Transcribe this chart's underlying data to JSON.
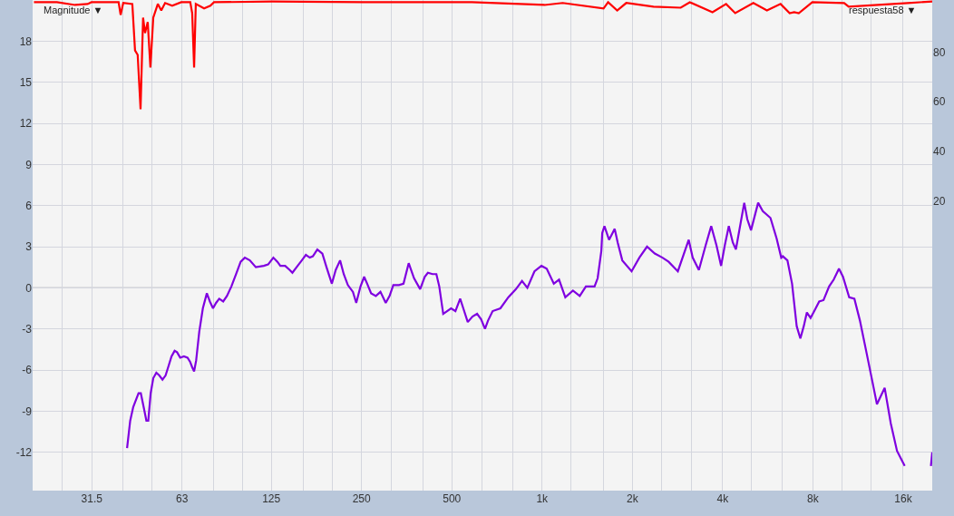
{
  "chart_data": {
    "type": "line",
    "annotations": [
      "Magnitude ▼",
      "respuesta58 ▼"
    ],
    "xlim": [
      20,
      20000
    ],
    "ylim": [
      -14.8,
      21
    ],
    "y2lim": [
      -96.7,
      101
    ],
    "log": "x",
    "grid": true,
    "legend": false,
    "marker": "none",
    "line_style": "solid",
    "xticks": [
      {
        "value": 25,
        "label": null
      },
      {
        "value": 31.5,
        "label": "31.5"
      },
      {
        "value": 40,
        "label": null
      },
      {
        "value": 50,
        "label": null
      },
      {
        "value": 63,
        "label": "63"
      },
      {
        "value": 80,
        "label": null
      },
      {
        "value": 100,
        "label": null
      },
      125,
      {
        "value": 160,
        "label": null
      },
      {
        "value": 200,
        "label": null
      },
      250,
      {
        "value": 315,
        "label": null
      },
      {
        "value": 400,
        "label": null
      },
      500,
      {
        "value": 630,
        "label": null
      },
      {
        "value": 800,
        "label": null
      },
      {
        "value": 1000,
        "label": "1k"
      },
      {
        "value": 1250,
        "label": null
      },
      {
        "value": 1600,
        "label": null
      },
      {
        "value": 2000,
        "label": "2k"
      },
      {
        "value": 2500,
        "label": null
      },
      {
        "value": 3150,
        "label": null
      },
      {
        "value": 4000,
        "label": "4k"
      },
      {
        "value": 5000,
        "label": null
      },
      {
        "value": 6300,
        "label": null
      },
      {
        "value": 8000,
        "label": "8k"
      },
      {
        "value": 10000,
        "label": null
      },
      {
        "value": 12500,
        "label": null
      },
      {
        "value": 16000,
        "label": "16k"
      }
    ],
    "yticks": [
      -12,
      -9,
      -6,
      -3,
      0,
      3,
      6,
      9,
      12,
      15,
      18
    ],
    "y2ticks": [
      20,
      40,
      60,
      80
    ],
    "ref_lines": [
      {
        "axis": "y",
        "value": 0,
        "color": "#a0a0a8"
      }
    ],
    "series": [
      {
        "color": "#ff0000",
        "axis": "y2",
        "x": [
          20.2,
          24.1,
          27.7,
          30.5,
          31.4,
          38.7,
          39.3,
          40.1,
          43.0,
          43.9,
          44.8,
          45.8,
          46.7,
          47.4,
          48.4,
          49.4,
          50.5,
          52.3,
          53.7,
          55.3,
          58.4,
          62.6,
          67.1,
          68.1,
          69.1,
          70.0,
          74.6,
          78.3,
          80.5,
          126,
          253,
          583,
          1019,
          1171,
          1603,
          1660,
          1780,
          1908,
          2352,
          2899,
          3108,
          3700,
          4108,
          4405,
          5063,
          5621,
          6242,
          6692,
          6930,
          7177,
          7964,
          10170,
          10530,
          16560,
          20000
        ],
        "values": [
          100.1,
          100.1,
          99.0,
          99.4,
          100.1,
          100.1,
          95.0,
          99.8,
          99.4,
          80.7,
          78.9,
          57.0,
          93.9,
          87.7,
          92.1,
          73.8,
          93.9,
          99.4,
          96.8,
          99.8,
          98.7,
          100.1,
          100.1,
          95.7,
          73.8,
          99.4,
          97.6,
          98.7,
          100.1,
          100.4,
          100.1,
          100.1,
          99.0,
          99.8,
          97.6,
          100.1,
          96.8,
          99.8,
          98.3,
          97.9,
          100.1,
          96.1,
          99.4,
          95.7,
          99.8,
          96.8,
          99.4,
          95.7,
          96.1,
          95.7,
          100.1,
          99.8,
          98.3,
          99.8,
          100.4
        ]
      },
      {
        "color": "#7f00e0",
        "x": [
          41.3,
          42.3,
          43.3,
          45.1,
          45.9,
          47.0,
          47.9,
          48.6,
          49.5,
          50.5,
          51.7,
          52.9,
          54.2,
          55.5,
          56.8,
          58.1,
          59.5,
          60.6,
          62.1,
          63.9,
          65.7,
          67.0,
          68.1,
          69.1,
          70.2,
          71.9,
          73.9,
          76.2,
          78.0,
          79.9,
          81.8,
          83.8,
          86.4,
          88.9,
          92.0,
          95.4,
          98.8,
          102,
          106,
          111,
          118,
          122,
          127,
          131,
          134,
          139,
          144,
          147,
          153,
          158,
          163,
          168,
          172,
          178,
          185,
          191,
          199,
          205,
          212,
          218,
          225,
          234,
          240,
          248,
          255,
          261,
          269,
          279,
          289,
          301,
          310,
          319,
          333,
          345,
          359,
          374,
          392,
          406,
          416,
          431,
          444,
          454,
          468,
          497,
          514,
          533,
          546,
          565,
          586,
          607,
          626,
          645,
          660,
          684,
          726,
          771,
          818,
          857,
          893,
          943,
          995,
          1036,
          1094,
          1139,
          1195,
          1267,
          1335,
          1400,
          1496,
          1532,
          1576,
          1587,
          1614,
          1672,
          1746,
          1787,
          1851,
          1988,
          2110,
          2238,
          2375,
          2520,
          2642,
          2836,
          3083,
          3178,
          3333,
          3511,
          3664,
          3815,
          3953,
          4067,
          4194,
          4325,
          4429,
          4722,
          4834,
          4974,
          5253,
          5443,
          5774,
          6055,
          6273,
          6348,
          6578,
          6817,
          7063,
          7265,
          7458,
          7638,
          7859,
          8084,
          8396,
          8680,
          9062,
          9387,
          9772,
          10080,
          10570,
          11000,
          11480,
          12040,
          12620,
          13080,
          13880,
          14550,
          15260,
          16190,
          18000,
          19800,
          20000
        ],
        "values": [
          -11.7,
          -9.7,
          -8.7,
          -7.7,
          -7.7,
          -8.8,
          -9.7,
          -9.7,
          -7.7,
          -6.6,
          -6.2,
          -6.4,
          -6.7,
          -6.4,
          -5.7,
          -5.0,
          -4.6,
          -4.7,
          -5.1,
          -5.0,
          -5.1,
          -5.4,
          -5.8,
          -6.1,
          -5.3,
          -3.2,
          -1.5,
          -0.4,
          -1.0,
          -1.5,
          -1.1,
          -0.8,
          -1.0,
          -0.6,
          0.1,
          1.0,
          1.9,
          2.2,
          2.0,
          1.5,
          1.6,
          1.7,
          2.2,
          1.9,
          1.6,
          1.6,
          1.3,
          1.1,
          1.6,
          2.0,
          2.4,
          2.2,
          2.3,
          2.8,
          2.5,
          1.5,
          0.3,
          1.3,
          2.0,
          1.0,
          0.2,
          -0.3,
          -1.1,
          0.1,
          0.8,
          0.3,
          -0.4,
          -0.6,
          -0.3,
          -1.1,
          -0.6,
          0.2,
          0.2,
          0.3,
          1.8,
          0.7,
          -0.1,
          0.8,
          1.1,
          1.0,
          1.0,
          0.1,
          -1.9,
          -1.5,
          -1.7,
          -0.8,
          -1.5,
          -2.5,
          -2.1,
          -1.9,
          -2.3,
          -3.0,
          -2.4,
          -1.7,
          -1.5,
          -0.7,
          -0.1,
          0.5,
          0.0,
          1.2,
          1.6,
          1.4,
          0.3,
          0.6,
          -0.7,
          -0.2,
          -0.6,
          0.1,
          0.1,
          0.7,
          2.7,
          4.0,
          4.5,
          3.5,
          4.3,
          3.3,
          2.0,
          1.2,
          2.2,
          3.0,
          2.5,
          2.2,
          1.9,
          1.2,
          3.5,
          2.2,
          1.3,
          3.1,
          4.5,
          3.1,
          1.6,
          3.1,
          4.5,
          3.3,
          2.8,
          6.2,
          5.0,
          4.2,
          6.2,
          5.6,
          5.1,
          3.6,
          2.2,
          2.3,
          2.0,
          0.3,
          -2.8,
          -3.7,
          -2.8,
          -1.8,
          -2.2,
          -1.7,
          -1.0,
          -0.9,
          0.1,
          0.6,
          1.4,
          0.8,
          -0.7,
          -0.8,
          -2.4,
          -4.6,
          -6.8,
          -8.5,
          -7.3,
          -9.9,
          -11.9,
          -13.0,
          null,
          -13.0,
          -12.0
        ]
      }
    ]
  }
}
